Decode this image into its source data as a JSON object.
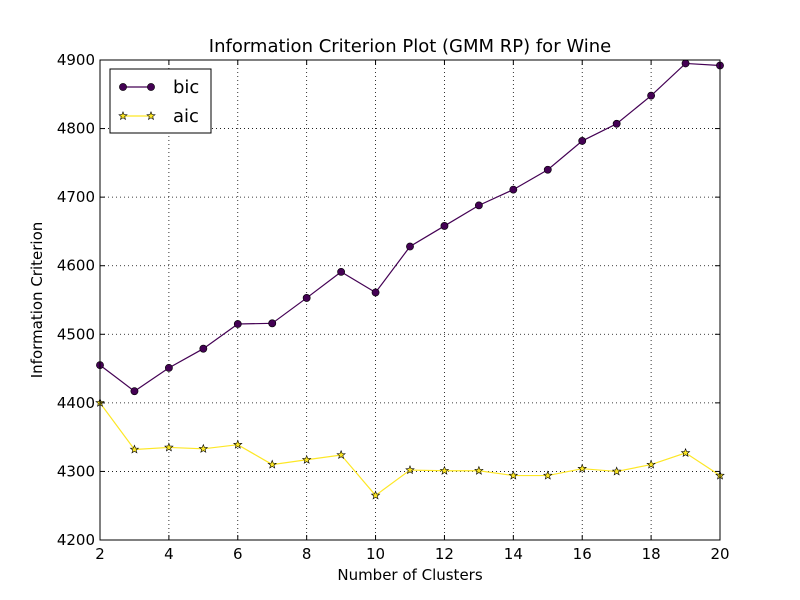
{
  "chart_data": {
    "type": "line",
    "title": "Information Criterion Plot (GMM RP) for Wine",
    "xlabel": "Number of Clusters",
    "ylabel": "Information Criterion",
    "xlim": [
      2,
      20
    ],
    "ylim": [
      4200,
      4900
    ],
    "xticks": [
      2,
      4,
      6,
      8,
      10,
      12,
      14,
      16,
      18,
      20
    ],
    "yticks": [
      4200,
      4300,
      4400,
      4500,
      4600,
      4700,
      4800,
      4900
    ],
    "grid": true,
    "legend_position": "top-left",
    "x": [
      2,
      3,
      4,
      5,
      6,
      7,
      8,
      9,
      10,
      11,
      12,
      13,
      14,
      15,
      16,
      17,
      18,
      19,
      20
    ],
    "series": [
      {
        "name": "bic",
        "color": "#440154",
        "marker": "circle",
        "values": [
          4455,
          4417,
          4451,
          4479,
          4515,
          4516,
          4553,
          4591,
          4561,
          4628,
          4658,
          4688,
          4711,
          4740,
          4782,
          4807,
          4848,
          4895,
          4892
        ]
      },
      {
        "name": "aic",
        "color": "#fde725",
        "marker": "star",
        "values": [
          4400,
          4332,
          4335,
          4333,
          4339,
          4310,
          4317,
          4324,
          4265,
          4302,
          4301,
          4301,
          4294,
          4294,
          4304,
          4300,
          4310,
          4327,
          4294
        ]
      }
    ]
  }
}
